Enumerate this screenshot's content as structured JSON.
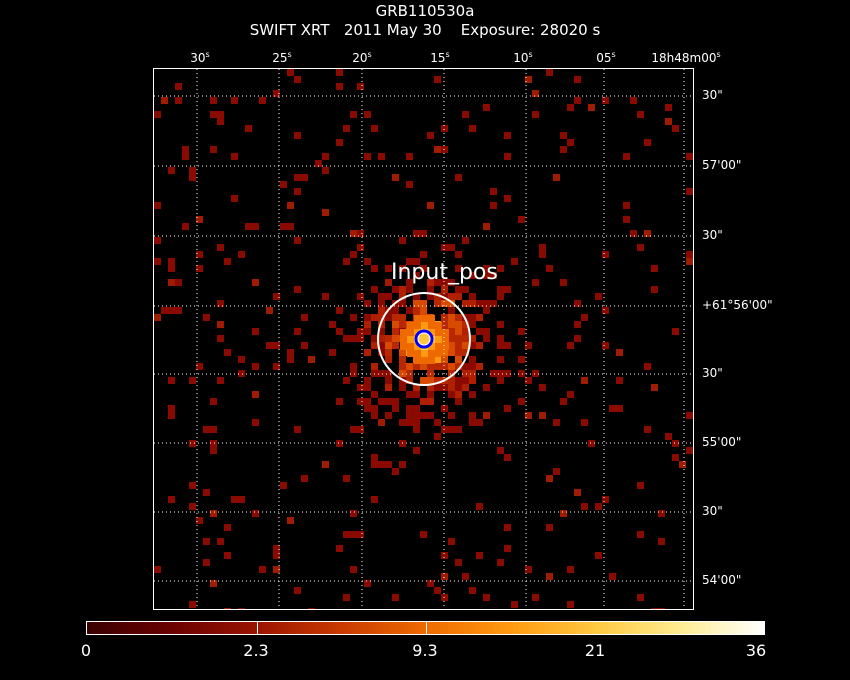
{
  "title": {
    "object": "GRB110530a",
    "line2": "SWIFT XRT   2011 May 30    Exposure: 28020 s"
  },
  "ra_ticks": [
    {
      "text": "30",
      "unit": "s"
    },
    {
      "text": "25",
      "unit": "s"
    },
    {
      "text": "20",
      "unit": "s"
    },
    {
      "text": "15",
      "unit": "s"
    },
    {
      "text": "10",
      "unit": "s"
    },
    {
      "text": "05",
      "unit": "s"
    },
    {
      "text": "18h48m00",
      "unit": "s"
    }
  ],
  "dec_ticks": [
    "30\"",
    "57'00\"",
    "30\"",
    "+61°56'00\"",
    "30\"",
    "55'00\"",
    "30\"",
    "54'00\""
  ],
  "source": {
    "label": "Input_pos"
  },
  "colorbar": {
    "labels": [
      "0",
      "2.3",
      "9.3",
      "21",
      "36"
    ],
    "colors": [
      "#3a0000",
      "#6a0000",
      "#9a1400",
      "#c83a00",
      "#ee6a00",
      "#ff9a10",
      "#ffc840",
      "#ffec90",
      "#ffffff"
    ]
  },
  "colors": {
    "background": "#000000",
    "grid": "#ffffff",
    "source_circle": "#ffffff",
    "input_pos_marker": "#0000ff"
  }
}
